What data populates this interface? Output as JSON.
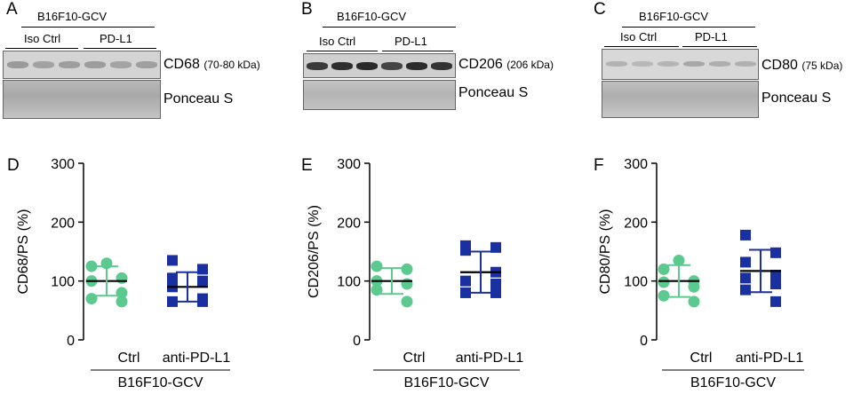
{
  "blots": [
    {
      "panel": "A",
      "cell_line": "B16F10-GCV",
      "groups": [
        "Iso Ctrl",
        "PD-L1"
      ],
      "protein": "CD68",
      "mw": "(70-80 kDa)",
      "loading": "Ponceau S"
    },
    {
      "panel": "B",
      "cell_line": "B16F10-GCV",
      "groups": [
        "Iso Ctrl",
        "PD-L1"
      ],
      "protein": "CD206",
      "mw": "(206 kDa)",
      "loading": "Ponceau S"
    },
    {
      "panel": "C",
      "cell_line": "B16F10-GCV",
      "groups": [
        "Iso Ctrl",
        "PD-L1"
      ],
      "protein": "CD80",
      "mw": "(75 kDa)",
      "loading": "Ponceau S"
    }
  ],
  "colors": {
    "ctrl": "#5cc98f",
    "anti": "#1a2fa0"
  },
  "chart_data": [
    {
      "panel": "D",
      "type": "scatter",
      "ylabel": "CD68/PS (%)",
      "ylim": [
        0,
        300
      ],
      "yticks": [
        "0",
        "100",
        "200",
        "300"
      ],
      "categories": [
        "Ctrl",
        "anti-PD-L1"
      ],
      "group_label": "B16F10-GCV",
      "series": [
        {
          "values": [
            130,
            125,
            105,
            100,
            80,
            70,
            65
          ],
          "mean": 100,
          "sd": 25
        },
        {
          "values": [
            135,
            120,
            105,
            100,
            90,
            70,
            65,
            65
          ],
          "mean": 90,
          "sd": 25
        }
      ]
    },
    {
      "panel": "E",
      "type": "scatter",
      "ylabel": "CD206/PS (%)",
      "ylim": [
        0,
        300
      ],
      "yticks": [
        "0",
        "100",
        "200",
        "300"
      ],
      "categories": [
        "Ctrl",
        "anti-PD-L1"
      ],
      "group_label": "B16F10-GCV",
      "series": [
        {
          "values": [
            125,
            120,
            100,
            95,
            85,
            65
          ],
          "mean": 100,
          "sd": 22
        },
        {
          "values": [
            160,
            157,
            152,
            115,
            100,
            95,
            80,
            80
          ],
          "mean": 115,
          "sd": 35
        }
      ]
    },
    {
      "panel": "F",
      "type": "scatter",
      "ylabel": "CD80/PS (%)",
      "ylim": [
        0,
        300
      ],
      "yticks": [
        "0",
        "100",
        "200",
        "300"
      ],
      "categories": [
        "Ctrl",
        "anti-PD-L1"
      ],
      "group_label": "B16F10-GCV",
      "series": [
        {
          "values": [
            135,
            120,
            100,
            98,
            90,
            75,
            65
          ],
          "mean": 100,
          "sd": 27
        },
        {
          "values": [
            178,
            148,
            132,
            110,
            105,
            95,
            85,
            65
          ],
          "mean": 117,
          "sd": 36
        }
      ]
    }
  ]
}
